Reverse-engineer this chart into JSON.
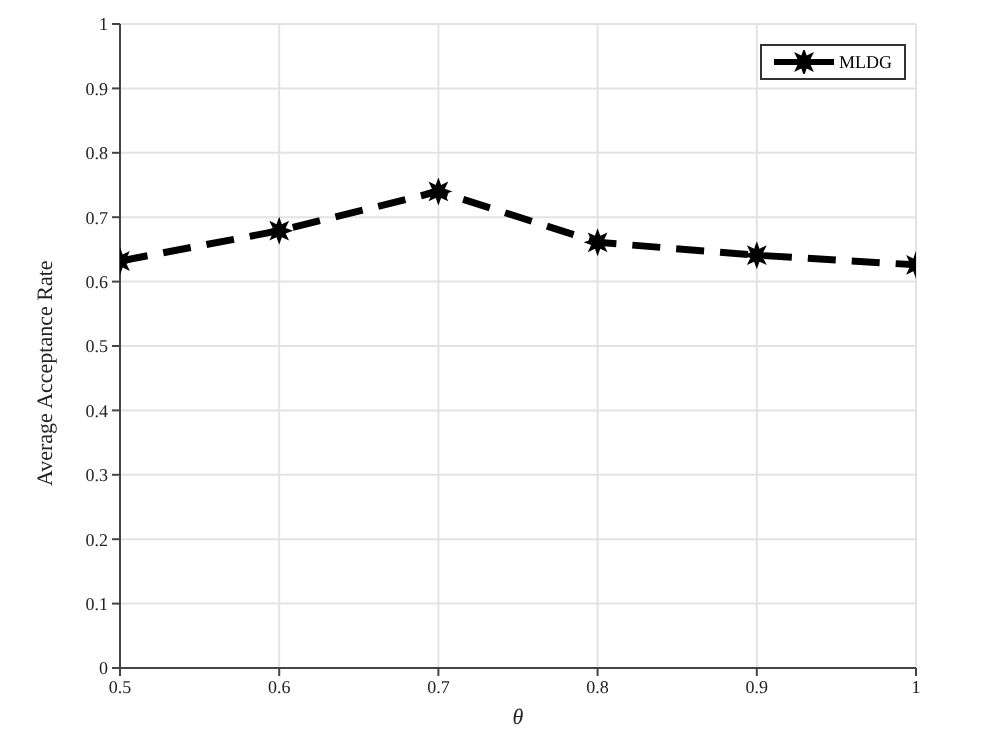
{
  "chart_data": {
    "type": "line",
    "xlabel": "θ",
    "ylabel": "Average Acceptance Rate",
    "x": [
      0.5,
      0.6,
      0.7,
      0.8,
      0.9,
      1
    ],
    "series": [
      {
        "name": "MLDG",
        "color": "#000000",
        "values": [
          0.632,
          0.679,
          0.74,
          0.661,
          0.641,
          0.626
        ]
      }
    ],
    "xlim": [
      0.5,
      1
    ],
    "xticks": [
      0.5,
      0.6,
      0.7,
      0.8,
      0.9,
      1
    ],
    "ylim": [
      0,
      1
    ],
    "yticks": [
      0,
      0.1,
      0.2,
      0.3,
      0.4,
      0.5,
      0.6,
      0.7,
      0.8,
      0.9,
      1
    ],
    "grid": true,
    "legend": "top right",
    "marker": "star",
    "line_style": "dashed"
  }
}
